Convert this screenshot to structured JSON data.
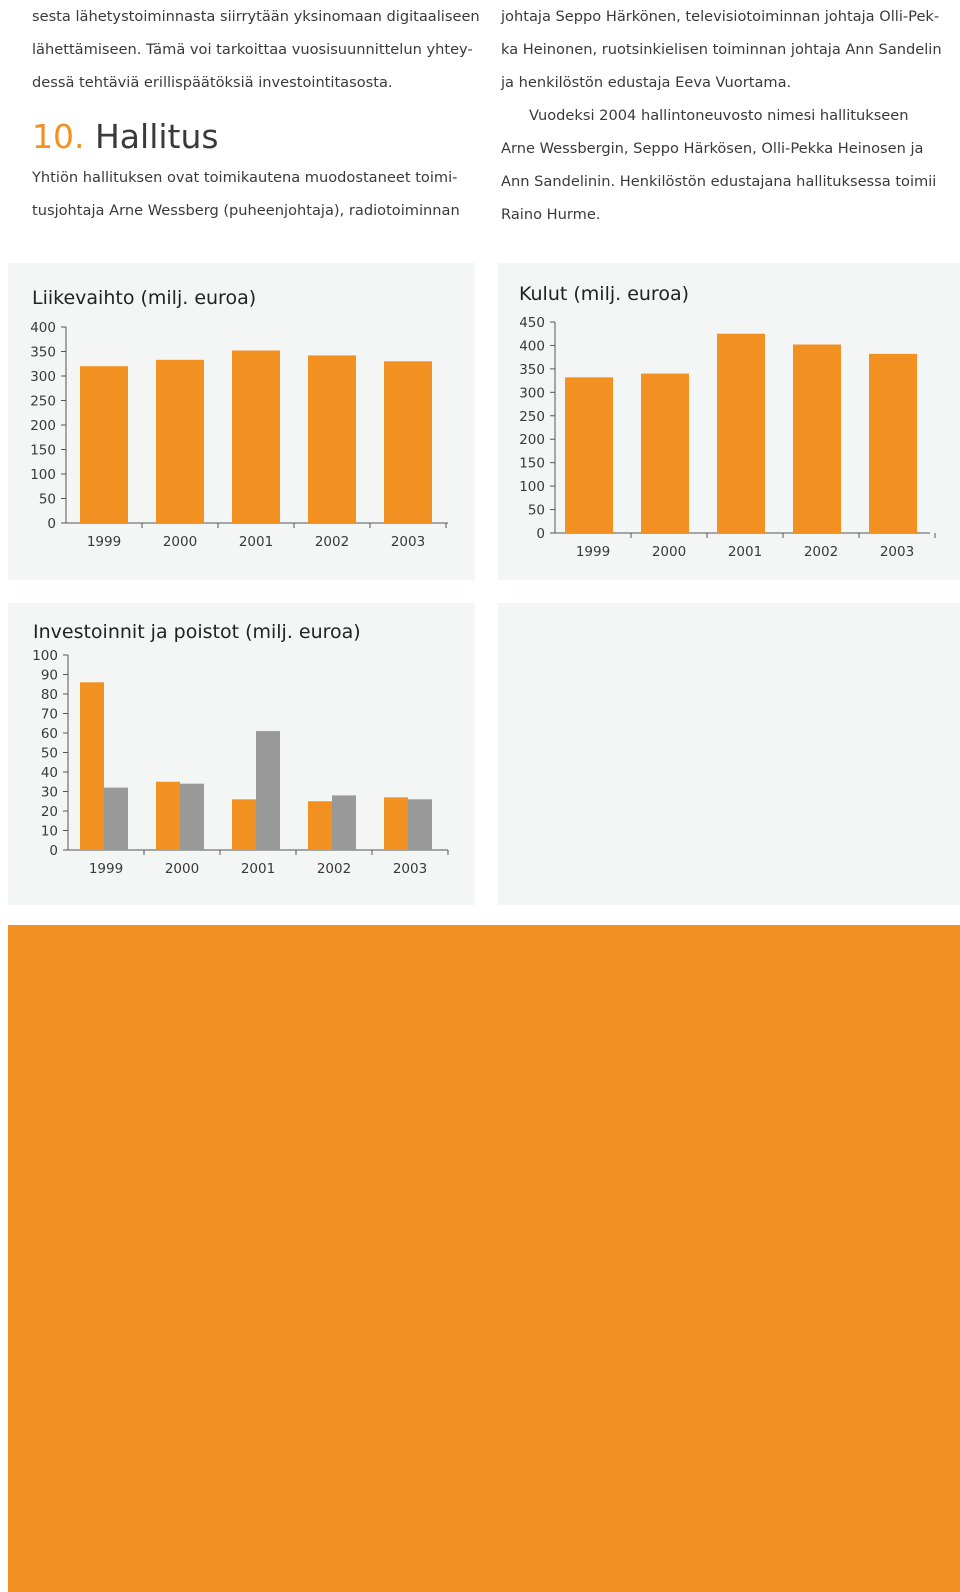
{
  "text": {
    "left_lines": [
      "sesta lähetystoiminnasta siirrytään yksinomaan digitaaliseen",
      "lähettämiseen. Tämä voi tarkoittaa vuosisuunnittelun yhtey-",
      "dessä tehtäviä erillispäätöksiä investointitasosta."
    ],
    "heading_number": "10.",
    "heading_title": "Hallitus",
    "left_lines_2": [
      "Yhtiön hallituksen ovat toimikautena muodostaneet toimi-",
      "tusjohtaja Arne Wessberg (puheenjohtaja), radiotoiminnan"
    ],
    "right_lines": [
      "johtaja Seppo Härkönen, televisiotoiminnan johtaja Olli-Pek-",
      "ka Heinonen, ruotsinkielisen toiminnan johtaja Ann Sandelin",
      "ja henkilöstön edustaja Eeva Vuortama."
    ],
    "right_lines_2": [
      "Vuodeksi 2004 hallintoneuvosto nimesi hallitukseen",
      "Arne Wessbergin, Seppo Härkösen, Olli-Pekka Heinosen ja",
      "Ann Sandelinin. Henkilöstön edustajana hallituksessa toimii",
      "Raino Hurme."
    ]
  },
  "colors": {
    "orange": "#f39022",
    "gray": "#999999",
    "panel": "#f4f5f5"
  },
  "chart_data": [
    {
      "type": "bar",
      "title": "Liikevaihto (milj. euroa)",
      "categories": [
        "1999",
        "2000",
        "2001",
        "2002",
        "2003"
      ],
      "series": [
        {
          "values": [
            320,
            333,
            352,
            342,
            330
          ]
        }
      ],
      "ylim": [
        0,
        400
      ],
      "yticks": [
        "400",
        "350",
        "300",
        "250",
        "200",
        "150",
        "100",
        "50",
        "0"
      ],
      "grid": false
    },
    {
      "type": "bar",
      "title": "Kulut (milj. euroa)",
      "categories": [
        "1999",
        "2000",
        "2001",
        "2002",
        "2003"
      ],
      "series": [
        {
          "values": [
            332,
            340,
            425,
            402,
            382
          ]
        }
      ],
      "ylim": [
        0,
        450
      ],
      "yticks": [
        "450",
        "400",
        "350",
        "300",
        "250",
        "200",
        "150",
        "100",
        "50",
        "0"
      ],
      "grid": false
    },
    {
      "type": "bar",
      "title": "Investoinnit ja poistot (milj. euroa)",
      "categories": [
        "1999",
        "2000",
        "2001",
        "2002",
        "2003"
      ],
      "series": [
        {
          "values": [
            86,
            35,
            26,
            25,
            27
          ]
        },
        {
          "values": [
            32,
            34,
            61,
            28,
            26
          ]
        }
      ],
      "ylim": [
        0,
        100
      ],
      "yticks": [
        "100",
        "90",
        "80",
        "70",
        "60",
        "50",
        "40",
        "30",
        "20",
        "10",
        "0"
      ],
      "grid": false
    }
  ]
}
